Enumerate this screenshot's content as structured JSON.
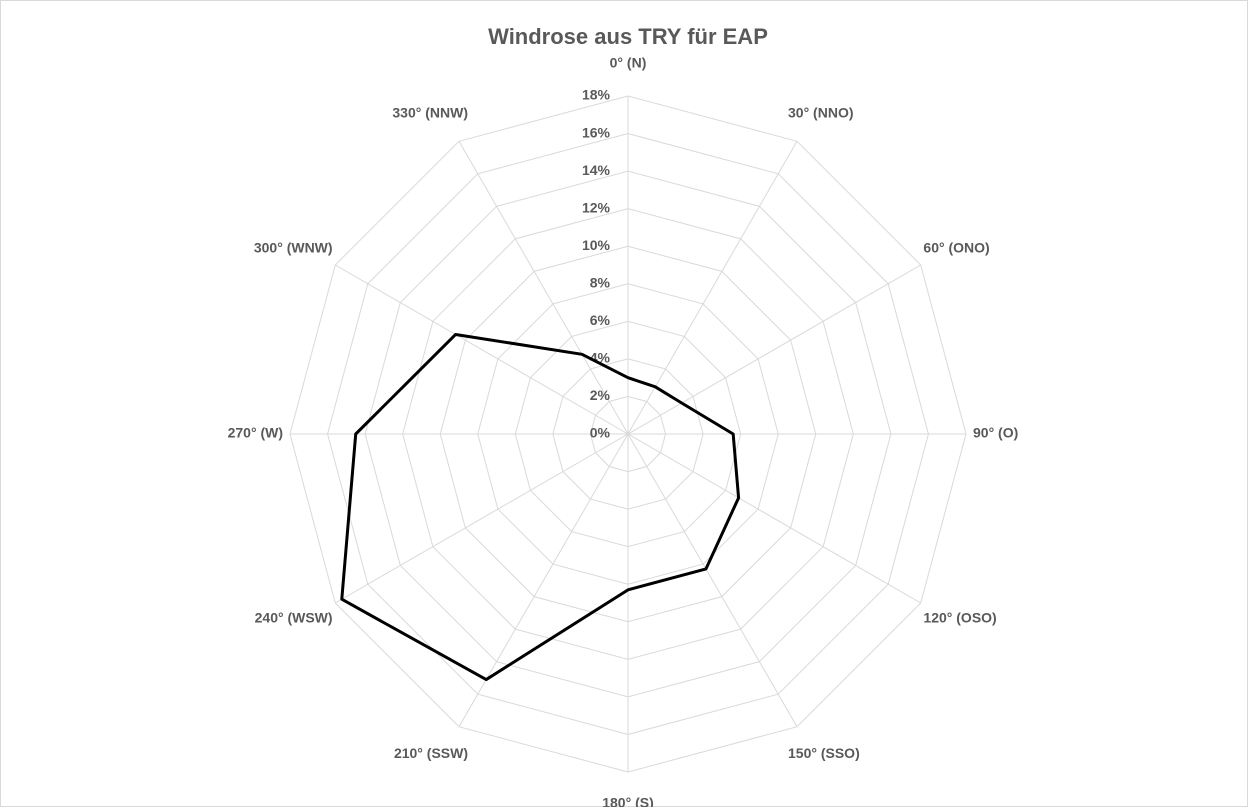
{
  "chart_data": {
    "type": "radar",
    "title": "Windrose aus TRY für EAP",
    "categories": [
      "0° (N)",
      "30° (NNO)",
      "60° (ONO)",
      "90° (O)",
      "120° (OSO)",
      "150° (SSO)",
      "180° (S)",
      "210° (SSW)",
      "240° (WSW)",
      "270° (W)",
      "300° (WNW)",
      "330° (NNW)"
    ],
    "series": [
      {
        "color": "#000000",
        "values": [
          3.0,
          2.9,
          3.3,
          5.6,
          6.8,
          8.3,
          8.3,
          15.1,
          17.6,
          14.5,
          10.6,
          4.9
        ]
      }
    ],
    "ylim": [
      0,
      18
    ],
    "yticks": [
      {
        "value": 0,
        "label": "0%"
      },
      {
        "value": 2,
        "label": "2%"
      },
      {
        "value": 4,
        "label": "4%"
      },
      {
        "value": 6,
        "label": "6%"
      },
      {
        "value": 8,
        "label": "8%"
      },
      {
        "value": 10,
        "label": "10%"
      },
      {
        "value": 12,
        "label": "12%"
      },
      {
        "value": 14,
        "label": "14%"
      },
      {
        "value": 16,
        "label": "16%"
      },
      {
        "value": 18,
        "label": "18%"
      }
    ],
    "grid": true
  }
}
